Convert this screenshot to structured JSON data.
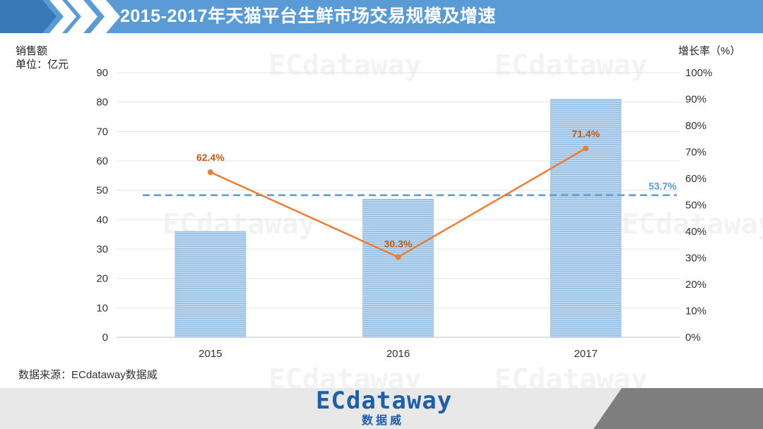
{
  "header": {
    "title": "2015-2017年天猫平台生鲜市场交易规模及增速"
  },
  "axes": {
    "left_title": "销售额",
    "left_unit": "单位：亿元",
    "right_title": "增长率（%）"
  },
  "source": "数据来源：ECdataway数据威",
  "brand": {
    "main": "ECdataway",
    "sub": "数据威"
  },
  "watermark": "ECdataway",
  "colors": {
    "header": "#5b9bd5",
    "bar": "#9dc3e6",
    "line": "#ed7d31",
    "avg": "#5b9bd5",
    "label": "#c55a11"
  },
  "chart_data": {
    "type": "bar",
    "categories": [
      "2015",
      "2016",
      "2017"
    ],
    "series": [
      {
        "type": "bar",
        "axis": "left",
        "values": [
          36,
          47,
          81
        ]
      },
      {
        "type": "line",
        "axis": "right",
        "values": [
          62.4,
          30.3,
          71.4
        ],
        "labels": [
          "62.4%",
          "30.3%",
          "71.4%"
        ]
      },
      {
        "type": "reference-line",
        "axis": "right",
        "value": 53.7,
        "label": "53.7%"
      }
    ],
    "ylim_left": [
      0,
      90
    ],
    "yticks_left": [
      "0",
      "10",
      "20",
      "30",
      "40",
      "50",
      "60",
      "70",
      "80",
      "90"
    ],
    "ylim_right": [
      0,
      100
    ],
    "yticks_right": [
      "0%",
      "10%",
      "20%",
      "30%",
      "40%",
      "50%",
      "60%",
      "70%",
      "80%",
      "90%",
      "100%"
    ],
    "grid": true
  }
}
